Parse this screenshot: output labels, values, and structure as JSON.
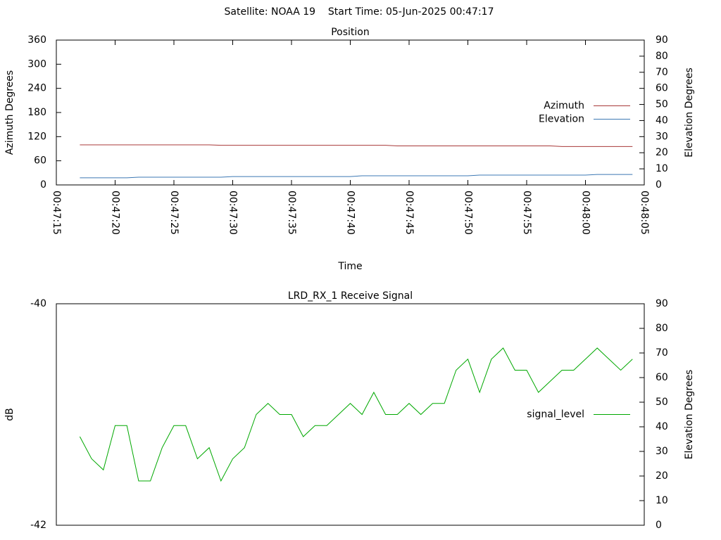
{
  "title": "Satellite: NOAA 19    Start Time: 05-Jun-2025 00:47:17",
  "chart_data": [
    {
      "type": "line",
      "title": "Position",
      "x_label": "Time",
      "y_label": "Azimuth Degrees",
      "y2_label": "Elevation Degrees",
      "x": [
        "00:47:17",
        "00:47:18",
        "00:47:19",
        "00:47:20",
        "00:47:21",
        "00:47:22",
        "00:47:23",
        "00:47:24",
        "00:47:25",
        "00:47:26",
        "00:47:27",
        "00:47:28",
        "00:47:29",
        "00:47:30",
        "00:47:31",
        "00:47:32",
        "00:47:33",
        "00:47:34",
        "00:47:35",
        "00:47:36",
        "00:47:37",
        "00:47:38",
        "00:47:39",
        "00:47:40",
        "00:47:41",
        "00:47:42",
        "00:47:43",
        "00:47:44",
        "00:47:45",
        "00:47:46",
        "00:47:47",
        "00:47:48",
        "00:47:49",
        "00:47:50",
        "00:47:51",
        "00:47:52",
        "00:47:53",
        "00:47:54",
        "00:47:55",
        "00:47:56",
        "00:47:57",
        "00:47:58",
        "00:47:59",
        "00:48:00",
        "00:48:01",
        "00:48:02",
        "00:48:03",
        "00:48:04"
      ],
      "xlim": [
        "00:47:15",
        "00:48:05"
      ],
      "xticks": [
        "00:47:15",
        "00:47:20",
        "00:47:25",
        "00:47:30",
        "00:47:35",
        "00:47:40",
        "00:47:45",
        "00:47:50",
        "00:47:55",
        "00:48:00",
        "00:48:05"
      ],
      "ylim": [
        0,
        360
      ],
      "yticks": [
        0,
        60,
        120,
        180,
        240,
        300,
        360
      ],
      "y2lim": [
        0,
        90
      ],
      "y2ticks": [
        0,
        10,
        20,
        30,
        40,
        50,
        60,
        70,
        80,
        90
      ],
      "legend": "right",
      "series": [
        {
          "name": "Azimuth",
          "color": "#a83838",
          "values": [
            99.6,
            99.6,
            99.6,
            99.6,
            99.6,
            99.6,
            99.6,
            99.6,
            99.6,
            99.6,
            99.6,
            99.6,
            98.5,
            98.5,
            98.5,
            98.5,
            98.5,
            98.5,
            98.5,
            98.5,
            98.5,
            98.5,
            98.5,
            98.5,
            98.5,
            98.5,
            98.5,
            97.0,
            97.0,
            97.0,
            97.0,
            97.0,
            97.0,
            97.0,
            97.0,
            97.0,
            97.0,
            97.0,
            97.0,
            97.0,
            97.0,
            95.5,
            95.5,
            95.5,
            95.5,
            95.5,
            95.5,
            95.5
          ]
        },
        {
          "name": "Elevation",
          "color": "#3c78b4",
          "axis": "y2",
          "values": [
            4.4,
            4.4,
            4.4,
            4.4,
            4.4,
            4.8,
            4.8,
            4.8,
            4.8,
            4.8,
            4.8,
            4.8,
            4.8,
            5.2,
            5.2,
            5.2,
            5.2,
            5.2,
            5.2,
            5.2,
            5.2,
            5.2,
            5.2,
            5.2,
            5.7,
            5.7,
            5.7,
            5.7,
            5.7,
            5.7,
            5.7,
            5.7,
            5.7,
            5.7,
            6.1,
            6.1,
            6.1,
            6.1,
            6.1,
            6.1,
            6.1,
            6.1,
            6.1,
            6.1,
            6.5,
            6.5,
            6.5,
            6.5
          ]
        }
      ]
    },
    {
      "type": "line",
      "title": "LRD_RX_1 Receive Signal",
      "y_label": "dB",
      "y2_label": "Elevation Degrees",
      "x": [
        "00:47:17",
        "00:47:18",
        "00:47:19",
        "00:47:20",
        "00:47:21",
        "00:47:22",
        "00:47:23",
        "00:47:24",
        "00:47:25",
        "00:47:26",
        "00:47:27",
        "00:47:28",
        "00:47:29",
        "00:47:30",
        "00:47:31",
        "00:47:32",
        "00:47:33",
        "00:47:34",
        "00:47:35",
        "00:47:36",
        "00:47:37",
        "00:47:38",
        "00:47:39",
        "00:47:40",
        "00:47:41",
        "00:47:42",
        "00:47:43",
        "00:47:44",
        "00:47:45",
        "00:47:46",
        "00:47:47",
        "00:47:48",
        "00:47:49",
        "00:47:50",
        "00:47:51",
        "00:47:52",
        "00:47:53",
        "00:47:54",
        "00:47:55",
        "00:47:56",
        "00:47:57",
        "00:47:58",
        "00:47:59",
        "00:48:00",
        "00:48:01",
        "00:48:02",
        "00:48:03",
        "00:48:04"
      ],
      "xlim": [
        "00:47:15",
        "00:48:05"
      ],
      "ylim": [
        -42,
        -40
      ],
      "yticks": [
        -42,
        -40
      ],
      "y2lim": [
        0,
        90
      ],
      "y2ticks": [
        0,
        10,
        20,
        30,
        40,
        50,
        60,
        70,
        80,
        90
      ],
      "legend": "right",
      "series": [
        {
          "name": "signal_level",
          "color": "#00a800",
          "values": [
            -41.2,
            -41.4,
            -41.5,
            -41.1,
            -41.1,
            -41.6,
            -41.6,
            -41.3,
            -41.1,
            -41.1,
            -41.4,
            -41.3,
            -41.6,
            -41.4,
            -41.3,
            -41.0,
            -40.9,
            -41.0,
            -41.0,
            -41.2,
            -41.1,
            -41.1,
            -41.0,
            -40.9,
            -41.0,
            -40.8,
            -41.0,
            -41.0,
            -40.9,
            -41.0,
            -40.9,
            -40.9,
            -40.6,
            -40.5,
            -40.8,
            -40.5,
            -40.4,
            -40.6,
            -40.6,
            -40.8,
            -40.7,
            -40.6,
            -40.6,
            -40.5,
            -40.4,
            -40.5,
            -40.6,
            -40.5
          ]
        }
      ]
    }
  ]
}
